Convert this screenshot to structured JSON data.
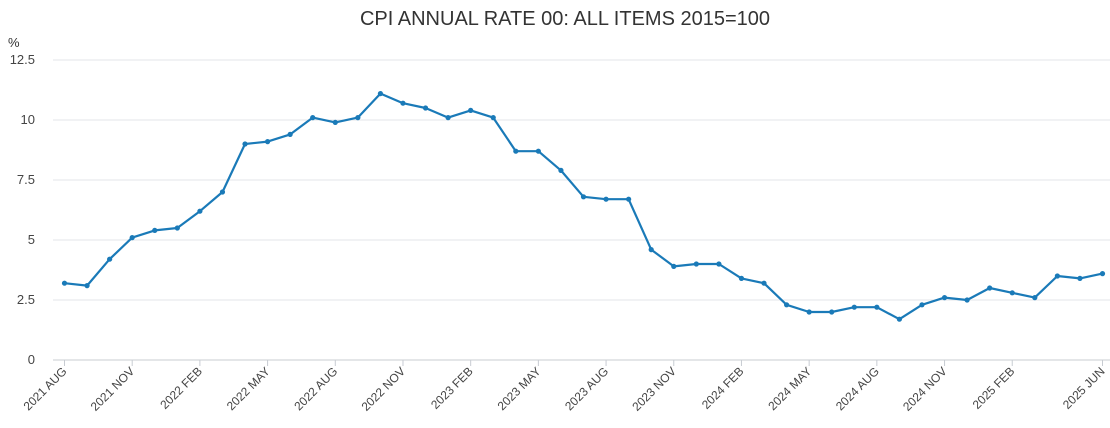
{
  "chart_data": {
    "type": "line",
    "title": "CPI ANNUAL RATE 00: ALL ITEMS 2015=100",
    "ylabel": "%",
    "xlabel": "",
    "ylim": [
      0,
      12.5
    ],
    "yticks": [
      0,
      2.5,
      5,
      7.5,
      10,
      12.5
    ],
    "ytick_labels": [
      "0",
      "2.5",
      "5",
      "7.5",
      "10",
      "12.5"
    ],
    "grid": true,
    "line_color": "#1a7ab8",
    "x": [
      "2021 AUG",
      "2021 SEP",
      "2021 OCT",
      "2021 NOV",
      "2021 DEC",
      "2022 JAN",
      "2022 FEB",
      "2022 MAR",
      "2022 APR",
      "2022 MAY",
      "2022 JUN",
      "2022 JUL",
      "2022 AUG",
      "2022 SEP",
      "2022 OCT",
      "2022 NOV",
      "2022 DEC",
      "2023 JAN",
      "2023 FEB",
      "2023 MAR",
      "2023 APR",
      "2023 MAY",
      "2023 JUN",
      "2023 JUL",
      "2023 AUG",
      "2023 SEP",
      "2023 OCT",
      "2023 NOV",
      "2023 DEC",
      "2024 JAN",
      "2024 FEB",
      "2024 MAR",
      "2024 APR",
      "2024 MAY",
      "2024 JUN",
      "2024 JUL",
      "2024 AUG",
      "2024 SEP",
      "2024 OCT",
      "2024 NOV",
      "2024 DEC",
      "2025 JAN",
      "2025 FEB",
      "2025 MAR",
      "2025 APR",
      "2025 MAY",
      "2025 JUN"
    ],
    "x_tick_labels": [
      "2021 AUG",
      "2021 NOV",
      "2022 FEB",
      "2022 MAY",
      "2022 AUG",
      "2022 NOV",
      "2023 FEB",
      "2023 MAY",
      "2023 AUG",
      "2023 NOV",
      "2024 FEB",
      "2024 MAY",
      "2024 AUG",
      "2024 NOV",
      "2025 FEB",
      "2025 JUN"
    ],
    "series": [
      {
        "values": [
          3.2,
          3.1,
          4.2,
          5.1,
          5.4,
          5.5,
          6.2,
          7.0,
          9.0,
          9.1,
          9.4,
          10.1,
          9.9,
          10.1,
          11.1,
          10.7,
          10.5,
          10.1,
          10.4,
          10.1,
          8.7,
          8.7,
          7.9,
          6.8,
          6.7,
          6.7,
          4.6,
          3.9,
          4.0,
          4.0,
          3.4,
          3.2,
          2.3,
          2.0,
          2.0,
          2.2,
          2.2,
          1.7,
          2.3,
          2.6,
          2.5,
          3.0,
          2.8,
          2.6,
          3.5,
          3.4,
          3.6
        ]
      }
    ]
  }
}
